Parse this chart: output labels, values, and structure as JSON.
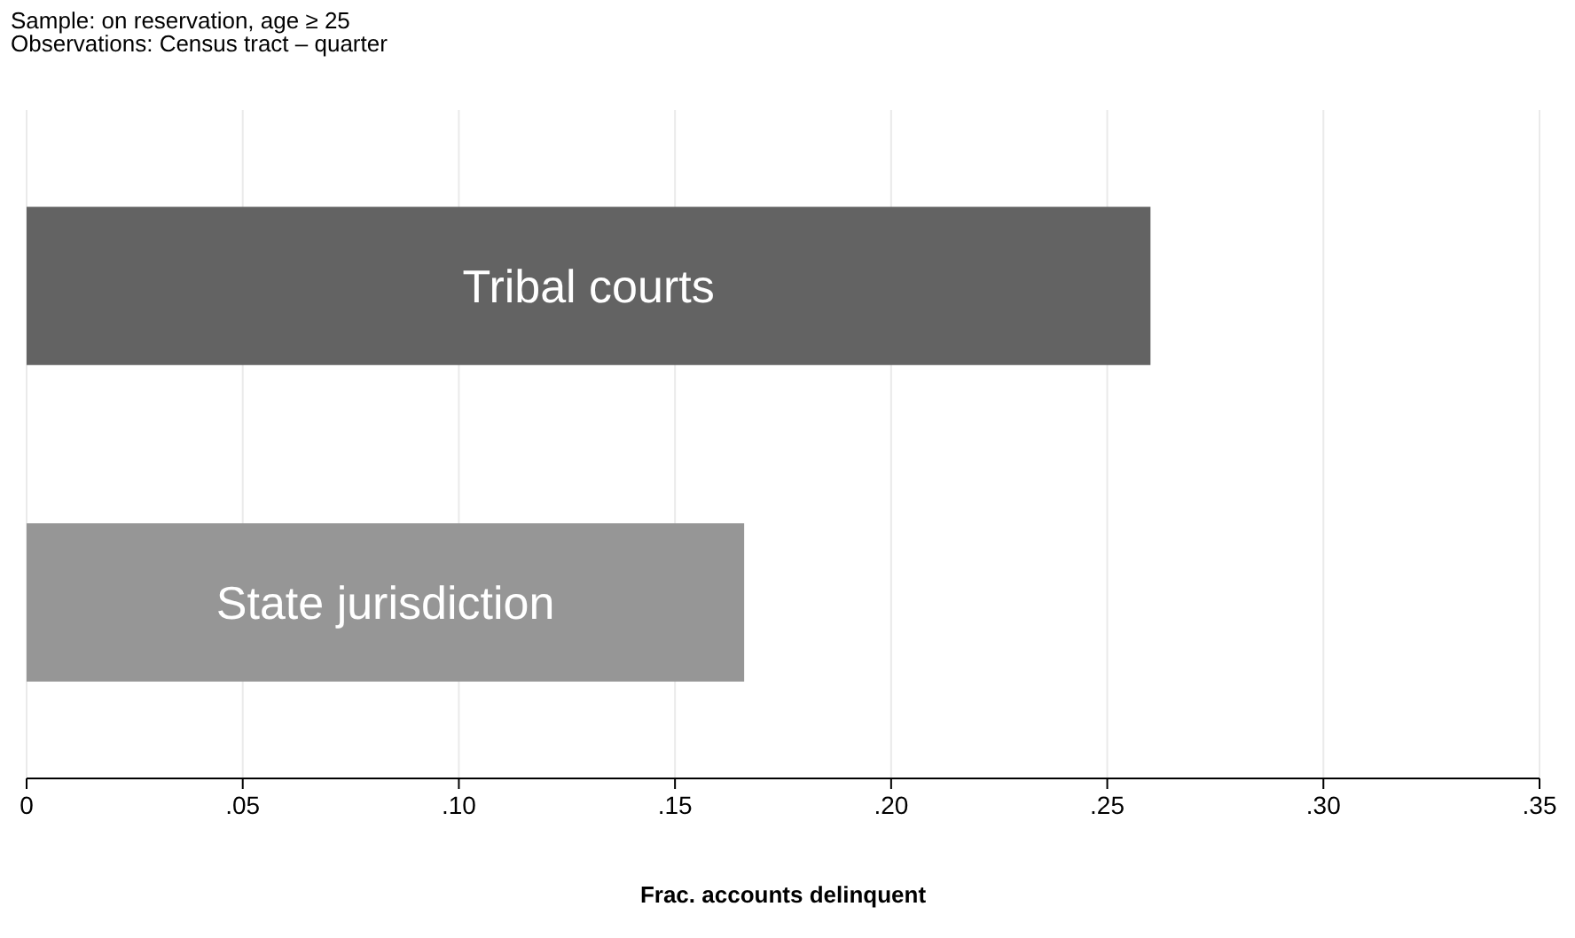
{
  "chart_data": {
    "type": "bar",
    "orientation": "horizontal",
    "categories": [
      "Tribal courts",
      "State jurisdiction"
    ],
    "values": [
      0.26,
      0.166
    ],
    "colors": [
      "#636363",
      "#969696"
    ],
    "xlim": [
      0,
      0.35
    ],
    "xticks": [
      0,
      {
        "value": 0.05,
        "label": ".05"
      },
      {
        "value": 0.1,
        "label": ".10"
      },
      {
        "value": 0.15,
        "label": ".15"
      },
      {
        "value": 0.2,
        "label": ".20"
      },
      {
        "value": 0.25,
        "label": ".25"
      },
      {
        "value": 0.3,
        "label": ".30"
      },
      {
        "value": 0.35,
        "label": ".35"
      }
    ],
    "xlabel": "Frac. accounts delinquent",
    "grid": "x",
    "annotations": [
      "Sample: on reservation, age ≥ 25",
      "Observations: Census tract – quarter"
    ]
  }
}
